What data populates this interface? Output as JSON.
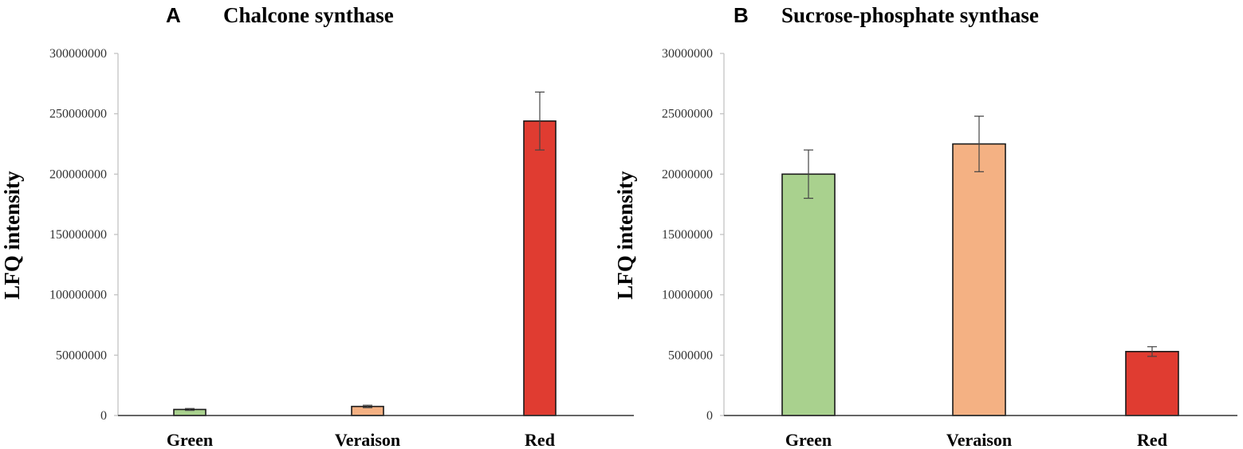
{
  "chart_data": [
    {
      "type": "bar",
      "panel": "A",
      "title": "Chalcone synthase",
      "xlabel": "",
      "ylabel": "LFQ intensity",
      "categories": [
        "Green",
        "Veraison",
        "Red"
      ],
      "values": [
        5000000,
        7500000,
        244000000
      ],
      "errors": [
        800000,
        1000000,
        24000000
      ],
      "colors": [
        "#a9d18e",
        "#f4b183",
        "#e03c31"
      ],
      "ylim": [
        0,
        300000000
      ],
      "yticks": [
        0,
        50000000,
        100000000,
        150000000,
        200000000,
        250000000,
        300000000
      ],
      "ytick_labels": [
        "0",
        "50000000",
        "100000000",
        "150000000",
        "200000000",
        "250000000",
        "300000000"
      ]
    },
    {
      "type": "bar",
      "panel": "B",
      "title": "Sucrose-phosphate synthase",
      "xlabel": "",
      "ylabel": "LFQ intensity",
      "categories": [
        "Green",
        "Veraison",
        "Red"
      ],
      "values": [
        20000000,
        22500000,
        5300000
      ],
      "errors": [
        2000000,
        2300000,
        400000
      ],
      "colors": [
        "#a9d18e",
        "#f4b183",
        "#e03c31"
      ],
      "ylim": [
        0,
        30000000
      ],
      "yticks": [
        0,
        5000000,
        10000000,
        15000000,
        20000000,
        25000000,
        30000000
      ],
      "ytick_labels": [
        "0",
        "5000000",
        "10000000",
        "15000000",
        "20000000",
        "25000000",
        "30000000"
      ]
    }
  ]
}
